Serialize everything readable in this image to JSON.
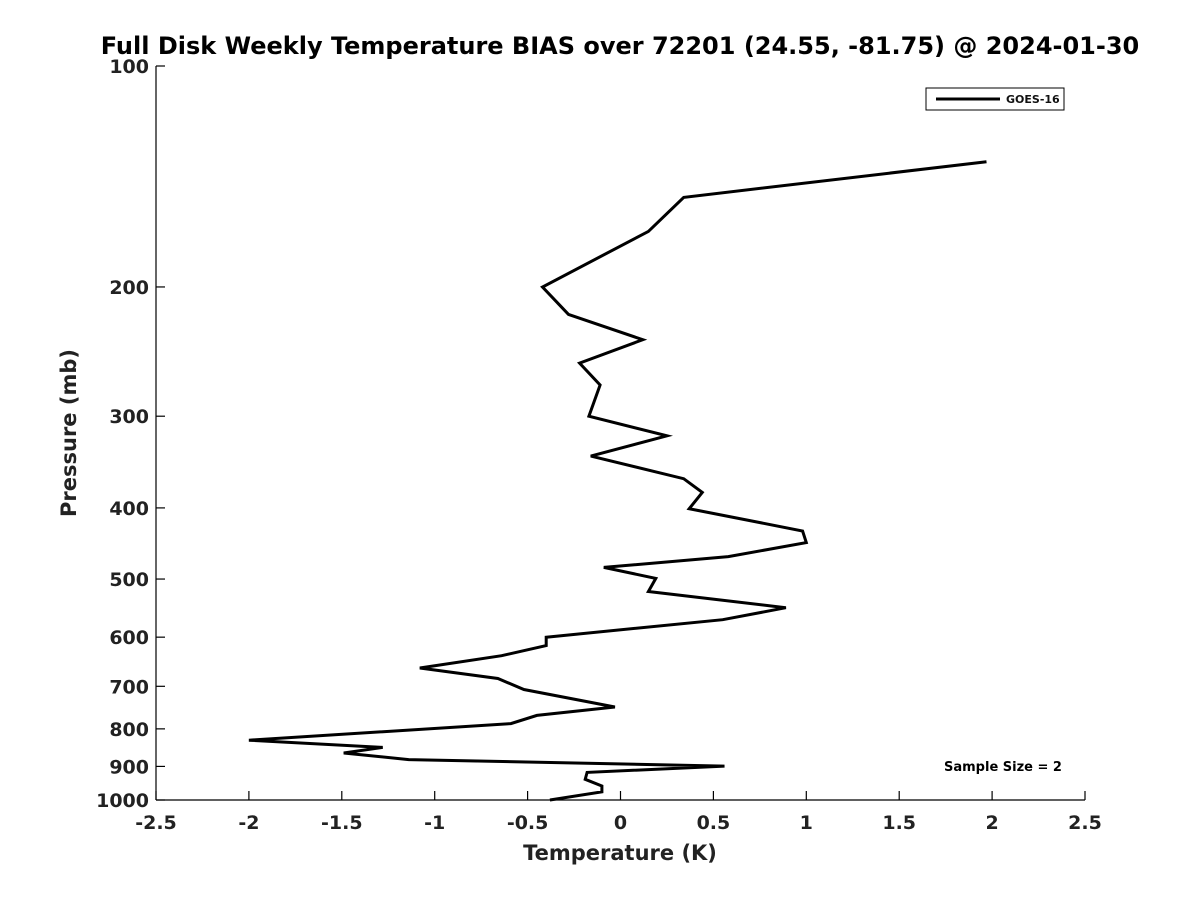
{
  "chart_data": {
    "type": "line",
    "title": "Full Disk Weekly Temperature BIAS over 72201 (24.55, -81.75) @ 2024-01-30",
    "xlabel": "Temperature (K)",
    "ylabel": "Pressure (mb)",
    "xlim": [
      -2.5,
      2.5
    ],
    "ylim": [
      1000,
      100
    ],
    "yscale": "log",
    "x_ticks": [
      -2.5,
      -2,
      -1.5,
      -1,
      -0.5,
      0,
      0.5,
      1,
      1.5,
      2,
      2.5
    ],
    "x_tick_labels": [
      "-2.5",
      "-2",
      "-1.5",
      "-1",
      "-0.5",
      "0",
      "0.5",
      "1",
      "1.5",
      "2",
      "2.5"
    ],
    "y_ticks": [
      100,
      200,
      300,
      400,
      500,
      600,
      700,
      800,
      900,
      1000
    ],
    "y_tick_labels": [
      "100",
      "200",
      "300",
      "400",
      "500",
      "600",
      "700",
      "800",
      "900",
      "1000"
    ],
    "grid": false,
    "legend_position": "top-right",
    "series": [
      {
        "name": "GOES-16",
        "color": "#000000",
        "points": [
          {
            "x": 1.97,
            "y": 135
          },
          {
            "x": 0.34,
            "y": 151
          },
          {
            "x": 0.15,
            "y": 168
          },
          {
            "x": -0.42,
            "y": 200
          },
          {
            "x": -0.28,
            "y": 218
          },
          {
            "x": 0.12,
            "y": 236
          },
          {
            "x": -0.22,
            "y": 254
          },
          {
            "x": -0.11,
            "y": 272
          },
          {
            "x": -0.17,
            "y": 300
          },
          {
            "x": 0.25,
            "y": 319
          },
          {
            "x": -0.16,
            "y": 340
          },
          {
            "x": 0.34,
            "y": 365
          },
          {
            "x": 0.44,
            "y": 381
          },
          {
            "x": 0.37,
            "y": 401
          },
          {
            "x": 0.98,
            "y": 430
          },
          {
            "x": 1.0,
            "y": 446
          },
          {
            "x": 0.58,
            "y": 466
          },
          {
            "x": -0.09,
            "y": 482
          },
          {
            "x": 0.19,
            "y": 499
          },
          {
            "x": 0.15,
            "y": 520
          },
          {
            "x": 0.89,
            "y": 547
          },
          {
            "x": 0.55,
            "y": 568
          },
          {
            "x": -0.4,
            "y": 600
          },
          {
            "x": -0.4,
            "y": 616
          },
          {
            "x": -0.64,
            "y": 636
          },
          {
            "x": -1.08,
            "y": 661
          },
          {
            "x": -0.66,
            "y": 683
          },
          {
            "x": -0.52,
            "y": 707
          },
          {
            "x": -0.03,
            "y": 747
          },
          {
            "x": -0.45,
            "y": 767
          },
          {
            "x": -0.59,
            "y": 787
          },
          {
            "x": -2.0,
            "y": 829
          },
          {
            "x": -1.28,
            "y": 848
          },
          {
            "x": -1.49,
            "y": 863
          },
          {
            "x": -1.14,
            "y": 881
          },
          {
            "x": 0.56,
            "y": 899
          },
          {
            "x": -0.18,
            "y": 917
          },
          {
            "x": -0.19,
            "y": 937
          },
          {
            "x": -0.1,
            "y": 957
          },
          {
            "x": -0.1,
            "y": 975
          },
          {
            "x": -0.38,
            "y": 1000
          }
        ]
      }
    ],
    "annotation": "Sample Size = 2"
  }
}
